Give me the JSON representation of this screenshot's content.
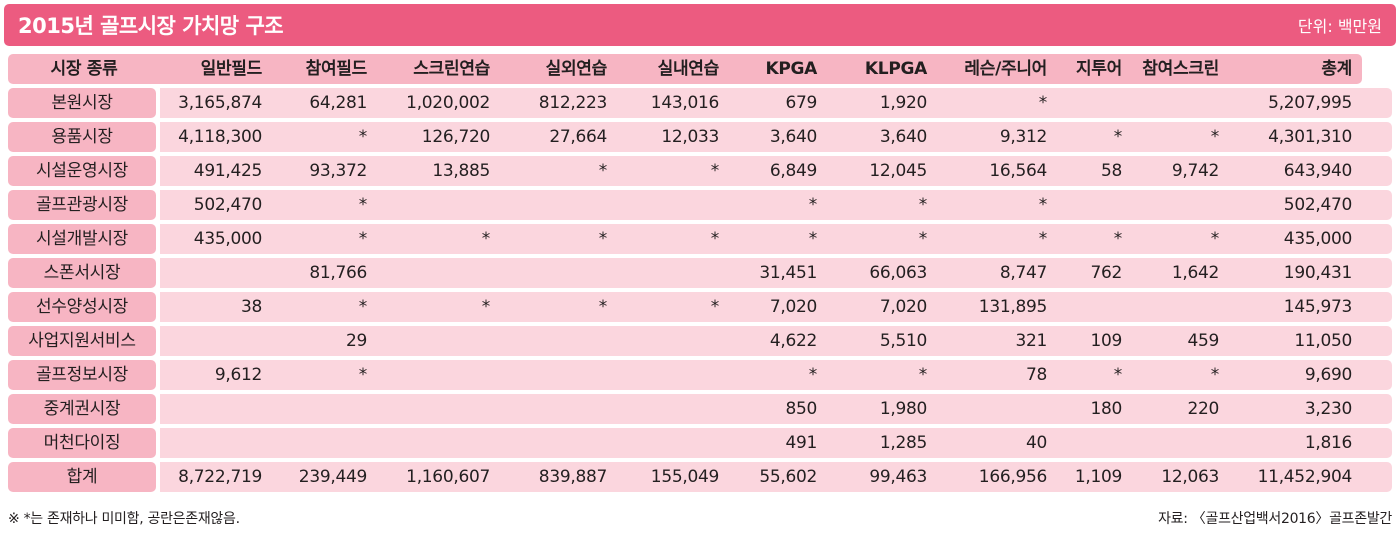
{
  "title": "2015년 골프시장 가치망 구조",
  "unit": "단위: 백만원",
  "columns": [
    "시장 종류",
    "일반필드",
    "참여필드",
    "스크린연습",
    "실외연습",
    "실내연습",
    "KPGA",
    "KLPGA",
    "레슨/주니어",
    "지투어",
    "참여스크린",
    "총계"
  ],
  "rows": [
    {
      "label": "본원시장",
      "values": [
        "3,165,874",
        "64,281",
        "1,020,002",
        "812,223",
        "143,016",
        "679",
        "1,920",
        "*",
        "",
        "",
        "5,207,995"
      ]
    },
    {
      "label": "용품시장",
      "values": [
        "4,118,300",
        "*",
        "126,720",
        "27,664",
        "12,033",
        "3,640",
        "3,640",
        "9,312",
        "*",
        "*",
        "4,301,310"
      ]
    },
    {
      "label": "시설운영시장",
      "values": [
        "491,425",
        "93,372",
        "13,885",
        "*",
        "*",
        "6,849",
        "12,045",
        "16,564",
        "58",
        "9,742",
        "643,940"
      ]
    },
    {
      "label": "골프관광시장",
      "values": [
        "502,470",
        "*",
        "",
        "",
        "",
        "*",
        "*",
        "*",
        "",
        "",
        "502,470"
      ]
    },
    {
      "label": "시설개발시장",
      "values": [
        "435,000",
        "*",
        "*",
        "*",
        "*",
        "*",
        "*",
        "*",
        "*",
        "*",
        "435,000"
      ]
    },
    {
      "label": "스폰서시장",
      "values": [
        "",
        "81,766",
        "",
        "",
        "",
        "31,451",
        "66,063",
        "8,747",
        "762",
        "1,642",
        "190,431"
      ]
    },
    {
      "label": "선수양성시장",
      "values": [
        "38",
        "*",
        "*",
        "*",
        "*",
        "7,020",
        "7,020",
        "131,895",
        "",
        "",
        "145,973"
      ]
    },
    {
      "label": "사업지원서비스",
      "values": [
        "",
        "29",
        "",
        "",
        "",
        "4,622",
        "5,510",
        "321",
        "109",
        "459",
        "11,050"
      ]
    },
    {
      "label": "골프정보시장",
      "values": [
        "9,612",
        "*",
        "",
        "",
        "",
        "*",
        "*",
        "78",
        "*",
        "*",
        "9,690"
      ]
    },
    {
      "label": "중계권시장",
      "values": [
        "",
        "",
        "",
        "",
        "",
        "850",
        "1,980",
        "",
        "180",
        "220",
        "3,230"
      ]
    },
    {
      "label": "머천다이징",
      "values": [
        "",
        "",
        "",
        "",
        "",
        "491",
        "1,285",
        "40",
        "",
        "",
        "1,816"
      ]
    },
    {
      "label": "합계",
      "values": [
        "8,722,719",
        "239,449",
        "1,160,607",
        "839,887",
        "155,049",
        "55,602",
        "99,463",
        "166,956",
        "1,109",
        "12,063",
        "11,452,904"
      ]
    }
  ],
  "footer": {
    "note": "※ *는 존재하나 미미함, 공란은존재않음.",
    "source": "자료: 〈골프산업백서2016〉골프존발간"
  }
}
